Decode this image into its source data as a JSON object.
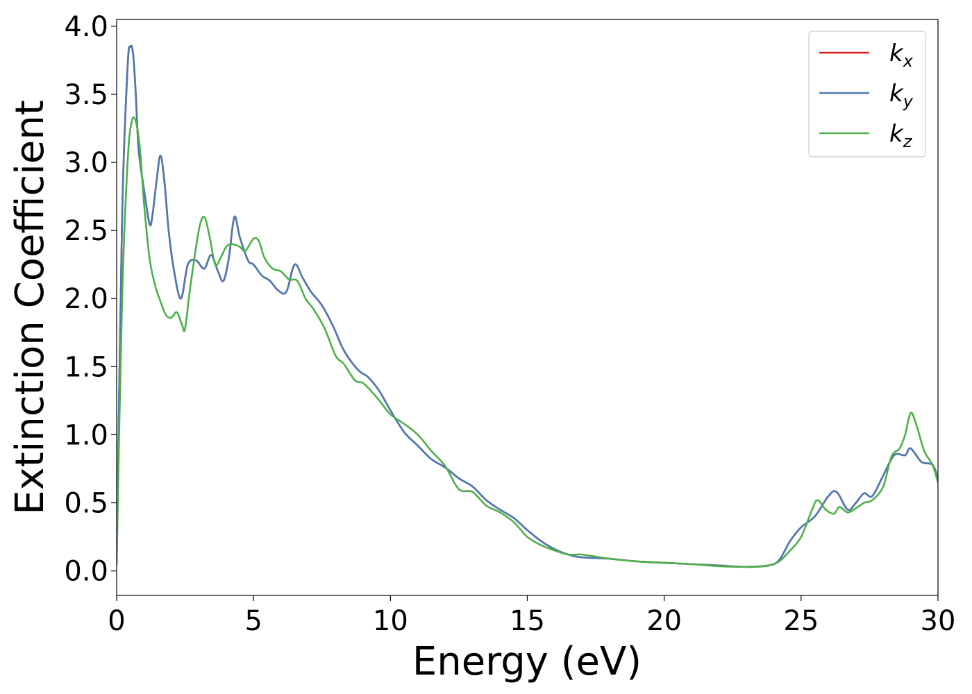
{
  "chart_data": {
    "type": "line",
    "title": "",
    "xlabel": "Energy (eV)",
    "ylabel": "Extinction Coefficient",
    "xlim": [
      0,
      30
    ],
    "ylim": [
      -0.18,
      4.05
    ],
    "xticks": [
      0,
      5,
      10,
      15,
      20,
      25,
      30
    ],
    "yticks": [
      0.0,
      0.5,
      1.0,
      1.5,
      2.0,
      2.5,
      3.0,
      3.5,
      4.0
    ],
    "grid": false,
    "legend_position": "top-right",
    "series": [
      {
        "name": "k",
        "subscript": "x",
        "color": "#d62728",
        "x": [
          0,
          0.2,
          0.4,
          0.5,
          0.6,
          0.7,
          0.8,
          1.0,
          1.2,
          1.3,
          1.45,
          1.6,
          1.75,
          1.9,
          2.1,
          2.35,
          2.6,
          2.9,
          3.2,
          3.45,
          3.7,
          3.9,
          4.1,
          4.3,
          4.5,
          4.8,
          5.0,
          5.3,
          5.6,
          5.9,
          6.2,
          6.5,
          6.8,
          7.1,
          7.5,
          7.9,
          8.3,
          8.8,
          9.2,
          9.6,
          10.0,
          10.5,
          11.0,
          11.5,
          12.0,
          12.5,
          13.0,
          13.5,
          14.0,
          14.5,
          15.0,
          15.5,
          16.0,
          16.5,
          17.0,
          18.0,
          19.0,
          20.0,
          21.0,
          22.0,
          23.0,
          23.8,
          24.2,
          24.6,
          25.0,
          25.5,
          26.0,
          26.3,
          26.7,
          27.0,
          27.3,
          27.6,
          28.0,
          28.4,
          28.8,
          29.0,
          29.4,
          29.8,
          30.0
        ],
        "y": [
          0.05,
          2.6,
          3.7,
          3.85,
          3.8,
          3.5,
          3.1,
          2.8,
          2.55,
          2.6,
          2.85,
          3.05,
          2.85,
          2.5,
          2.2,
          2.0,
          2.25,
          2.28,
          2.22,
          2.32,
          2.2,
          2.13,
          2.3,
          2.6,
          2.45,
          2.28,
          2.25,
          2.17,
          2.13,
          2.06,
          2.05,
          2.25,
          2.15,
          2.05,
          1.95,
          1.8,
          1.62,
          1.48,
          1.42,
          1.32,
          1.18,
          1.02,
          0.92,
          0.82,
          0.76,
          0.68,
          0.62,
          0.52,
          0.45,
          0.39,
          0.3,
          0.22,
          0.16,
          0.12,
          0.1,
          0.09,
          0.07,
          0.06,
          0.05,
          0.04,
          0.03,
          0.04,
          0.08,
          0.22,
          0.32,
          0.4,
          0.55,
          0.58,
          0.45,
          0.5,
          0.57,
          0.55,
          0.7,
          0.85,
          0.85,
          0.9,
          0.8,
          0.78,
          0.68
        ]
      },
      {
        "name": "k",
        "subscript": "y",
        "color": "#4a7ab5",
        "x": [
          0,
          0.2,
          0.4,
          0.5,
          0.6,
          0.7,
          0.8,
          1.0,
          1.2,
          1.3,
          1.45,
          1.6,
          1.75,
          1.9,
          2.1,
          2.35,
          2.6,
          2.9,
          3.2,
          3.45,
          3.7,
          3.9,
          4.1,
          4.3,
          4.5,
          4.8,
          5.0,
          5.3,
          5.6,
          5.9,
          6.2,
          6.5,
          6.8,
          7.1,
          7.5,
          7.9,
          8.3,
          8.8,
          9.2,
          9.6,
          10.0,
          10.5,
          11.0,
          11.5,
          12.0,
          12.5,
          13.0,
          13.5,
          14.0,
          14.5,
          15.0,
          15.5,
          16.0,
          16.5,
          17.0,
          18.0,
          19.0,
          20.0,
          21.0,
          22.0,
          23.0,
          23.8,
          24.2,
          24.6,
          25.0,
          25.5,
          26.0,
          26.3,
          26.7,
          27.0,
          27.3,
          27.6,
          28.0,
          28.4,
          28.8,
          29.0,
          29.4,
          29.8,
          30.0
        ],
        "y": [
          0.05,
          2.6,
          3.7,
          3.85,
          3.8,
          3.5,
          3.1,
          2.8,
          2.55,
          2.6,
          2.85,
          3.05,
          2.85,
          2.5,
          2.2,
          2.0,
          2.25,
          2.28,
          2.22,
          2.32,
          2.2,
          2.13,
          2.3,
          2.6,
          2.45,
          2.28,
          2.25,
          2.17,
          2.13,
          2.06,
          2.05,
          2.25,
          2.15,
          2.05,
          1.95,
          1.8,
          1.62,
          1.48,
          1.42,
          1.32,
          1.18,
          1.02,
          0.92,
          0.82,
          0.76,
          0.68,
          0.62,
          0.52,
          0.45,
          0.39,
          0.3,
          0.22,
          0.16,
          0.12,
          0.1,
          0.09,
          0.07,
          0.06,
          0.05,
          0.04,
          0.03,
          0.04,
          0.08,
          0.22,
          0.32,
          0.4,
          0.55,
          0.58,
          0.45,
          0.5,
          0.57,
          0.55,
          0.7,
          0.85,
          0.85,
          0.9,
          0.8,
          0.78,
          0.68
        ]
      },
      {
        "name": "k",
        "subscript": "z",
        "color": "#4daf4a",
        "x": [
          0,
          0.2,
          0.4,
          0.55,
          0.7,
          0.85,
          1.0,
          1.2,
          1.4,
          1.6,
          1.8,
          2.0,
          2.2,
          2.4,
          2.5,
          2.7,
          3.0,
          3.2,
          3.4,
          3.6,
          3.8,
          4.0,
          4.2,
          4.5,
          4.7,
          5.0,
          5.2,
          5.4,
          5.7,
          6.0,
          6.3,
          6.6,
          6.9,
          7.2,
          7.6,
          8.0,
          8.3,
          8.7,
          9.0,
          9.3,
          9.6,
          10.0,
          10.5,
          11.0,
          11.5,
          12.0,
          12.5,
          13.0,
          13.5,
          14.0,
          14.5,
          15.0,
          15.5,
          16.0,
          16.5,
          17.0,
          18.0,
          19.0,
          20.0,
          21.0,
          22.0,
          23.0,
          23.8,
          24.2,
          24.6,
          25.0,
          25.4,
          25.6,
          25.9,
          26.2,
          26.4,
          26.7,
          27.0,
          27.3,
          27.6,
          28.0,
          28.3,
          28.6,
          28.8,
          29.0,
          29.2,
          29.5,
          29.8,
          30.0
        ],
        "y": [
          0.05,
          2.0,
          3.0,
          3.3,
          3.3,
          3.1,
          2.7,
          2.3,
          2.1,
          1.98,
          1.88,
          1.86,
          1.9,
          1.8,
          1.78,
          2.1,
          2.5,
          2.6,
          2.45,
          2.25,
          2.3,
          2.38,
          2.4,
          2.38,
          2.35,
          2.44,
          2.42,
          2.3,
          2.22,
          2.2,
          2.14,
          2.13,
          2.0,
          1.92,
          1.78,
          1.58,
          1.52,
          1.4,
          1.38,
          1.32,
          1.25,
          1.15,
          1.08,
          1.0,
          0.88,
          0.77,
          0.6,
          0.58,
          0.48,
          0.43,
          0.36,
          0.25,
          0.19,
          0.15,
          0.12,
          0.12,
          0.09,
          0.07,
          0.06,
          0.05,
          0.035,
          0.03,
          0.04,
          0.07,
          0.15,
          0.25,
          0.45,
          0.52,
          0.45,
          0.42,
          0.47,
          0.43,
          0.46,
          0.5,
          0.52,
          0.62,
          0.84,
          0.9,
          1.0,
          1.16,
          1.08,
          0.88,
          0.78,
          0.65
        ]
      }
    ]
  }
}
